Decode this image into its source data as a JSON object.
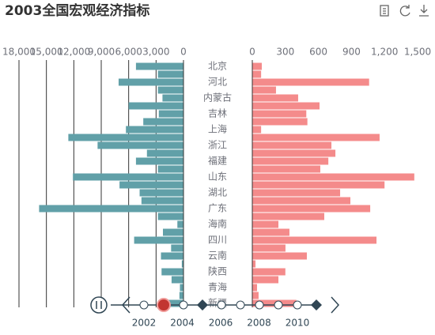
{
  "chart_data": {
    "type": "bar",
    "title": "2003全国宏观经济指标",
    "categories": [
      "北京",
      null,
      "河北",
      null,
      "内蒙古",
      null,
      "吉林",
      null,
      "上海",
      null,
      "浙江",
      null,
      "福建",
      null,
      "山东",
      null,
      "湖北",
      null,
      "广东",
      null,
      "海南",
      null,
      "四川",
      null,
      "云南",
      null,
      "陕西",
      null,
      "青海",
      null,
      "新疆"
    ],
    "series": [
      {
        "color": "#61a0a8",
        "inverse": true,
        "grid": true,
        "values": [
          5200,
          2800,
          7100,
          2800,
          2300,
          6000,
          2700,
          4400,
          6300,
          12600,
          9400,
          4000,
          5200,
          2800,
          12100,
          7000,
          4800,
          4600,
          15800,
          2800,
          670,
          2250,
          5400,
          1356,
          2465,
          185,
          2399,
          1304,
          390,
          445,
          1877
        ],
        "xlim": [
          0,
          18000
        ],
        "xticks": [
          {
            "value": 18000,
            "label": "18,000"
          },
          {
            "value": 15000,
            "label": "15,000"
          },
          {
            "value": 12000,
            "label": "12,000"
          },
          {
            "value": 9000,
            "label": "9,000"
          },
          {
            "value": 6000,
            "label": "6,000"
          },
          {
            "value": 3000,
            "label": "3,000"
          },
          0
        ]
      },
      {
        "color": "#f48b8b",
        "inverse": false,
        "grid": false,
        "values": [
          86,
          80,
          1060,
          215,
          416,
          610,
          490,
          500,
          80,
          1155,
          718,
          754,
          690,
          617,
          1470,
          1200,
          797,
          890,
          1070,
          653,
          237,
          337,
          1127,
          301,
          495,
          29,
          300,
          237,
          43,
          57,
          400
        ],
        "xlim": [
          0,
          1500
        ],
        "xticks": [
          0,
          300,
          600,
          900,
          {
            "value": 1200,
            "label": "1,200"
          },
          {
            "value": 1500,
            "label": "1,500"
          }
        ]
      }
    ]
  },
  "timeline": {
    "labels": [
      "2002",
      "2004",
      "2006",
      "2008",
      "2010"
    ]
  }
}
